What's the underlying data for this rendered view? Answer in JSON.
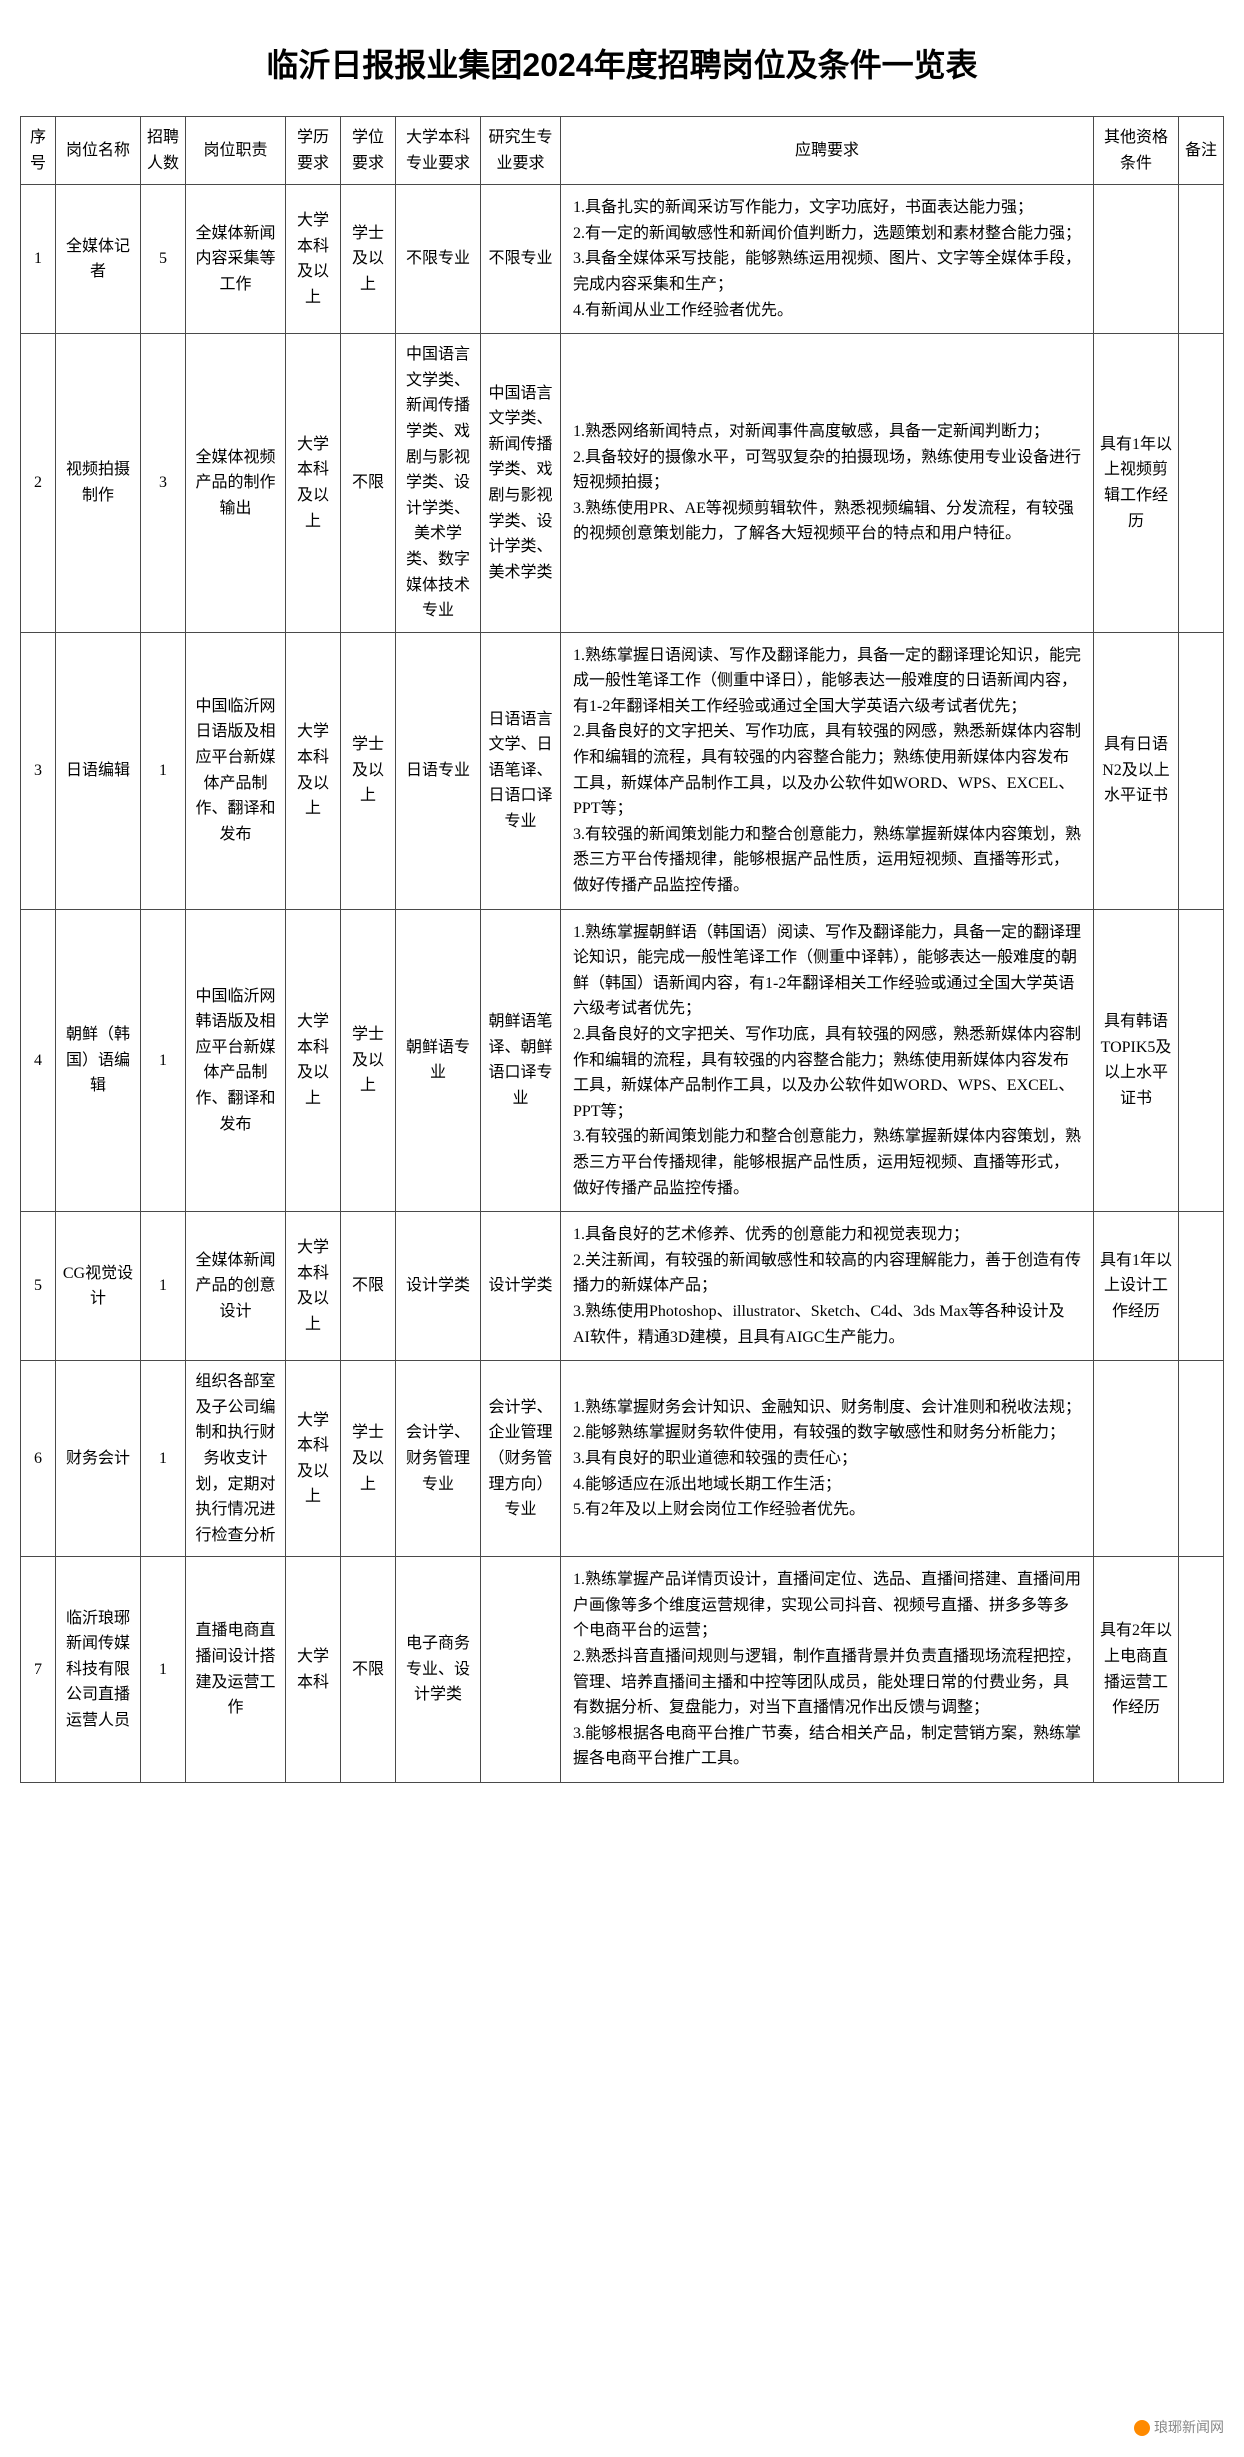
{
  "title": "临沂日报报业集团2024年度招聘岗位及条件一览表",
  "columns": {
    "no": "序号",
    "name": "岗位名称",
    "count": "招聘人数",
    "duty": "岗位职责",
    "edu": "学历要求",
    "degree": "学位要求",
    "bachelor_major": "大学本科专业要求",
    "grad_major": "研究生专业要求",
    "req": "应聘要求",
    "other": "其他资格条件",
    "remark": "备注"
  },
  "rows": [
    {
      "no": "1",
      "name": "全媒体记者",
      "count": "5",
      "duty": "全媒体新闻内容采集等工作",
      "edu": "大学本科及以上",
      "degree": "学士及以上",
      "bachelor_major": "不限专业",
      "grad_major": "不限专业",
      "req_lines": [
        "1.具备扎实的新闻采访写作能力，文字功底好，书面表达能力强；",
        "2.有一定的新闻敏感性和新闻价值判断力，选题策划和素材整合能力强；",
        "3.具备全媒体采写技能，能够熟练运用视频、图片、文字等全媒体手段，完成内容采集和生产；",
        "4.有新闻从业工作经验者优先。"
      ],
      "other": "",
      "remark": ""
    },
    {
      "no": "2",
      "name": "视频拍摄制作",
      "count": "3",
      "duty": "全媒体视频产品的制作输出",
      "edu": "大学本科及以上",
      "degree": "不限",
      "bachelor_major": "中国语言文学类、新闻传播学类、戏剧与影视学类、设计学类、美术学类、数字媒体技术专业",
      "grad_major": "中国语言文学类、新闻传播学类、戏剧与影视学类、设计学类、美术学类",
      "req_lines": [
        "1.熟悉网络新闻特点，对新闻事件高度敏感，具备一定新闻判断力；",
        "2.具备较好的摄像水平，可驾驭复杂的拍摄现场，熟练使用专业设备进行短视频拍摄；",
        "3.熟练使用PR、AE等视频剪辑软件，熟悉视频编辑、分发流程，有较强的视频创意策划能力，了解各大短视频平台的特点和用户特征。"
      ],
      "other": "具有1年以上视频剪辑工作经历",
      "remark": ""
    },
    {
      "no": "3",
      "name": "日语编辑",
      "count": "1",
      "duty": "中国临沂网日语版及相应平台新媒体产品制作、翻译和发布",
      "edu": "大学本科及以上",
      "degree": "学士及以上",
      "bachelor_major": "日语专业",
      "grad_major": "日语语言文学、日语笔译、日语口译专业",
      "req_lines": [
        "1.熟练掌握日语阅读、写作及翻译能力，具备一定的翻译理论知识，能完成一般性笔译工作（侧重中译日），能够表达一般难度的日语新闻内容，有1-2年翻译相关工作经验或通过全国大学英语六级考试者优先；",
        "2.具备良好的文字把关、写作功底，具有较强的网感，熟悉新媒体内容制作和编辑的流程，具有较强的内容整合能力；熟练使用新媒体内容发布工具，新媒体产品制作工具，以及办公软件如WORD、WPS、EXCEL、PPT等；",
        "3.有较强的新闻策划能力和整合创意能力，熟练掌握新媒体内容策划，熟悉三方平台传播规律，能够根据产品性质，运用短视频、直播等形式，做好传播产品监控传播。"
      ],
      "other": "具有日语N2及以上水平证书",
      "remark": ""
    },
    {
      "no": "4",
      "name": "朝鲜（韩国）语编辑",
      "count": "1",
      "duty": "中国临沂网韩语版及相应平台新媒体产品制作、翻译和发布",
      "edu": "大学本科及以上",
      "degree": "学士及以上",
      "bachelor_major": "朝鲜语专业",
      "grad_major": "朝鲜语笔译、朝鲜语口译专业",
      "req_lines": [
        "1.熟练掌握朝鲜语（韩国语）阅读、写作及翻译能力，具备一定的翻译理论知识，能完成一般性笔译工作（侧重中译韩），能够表达一般难度的朝鲜（韩国）语新闻内容，有1-2年翻译相关工作经验或通过全国大学英语六级考试者优先；",
        "2.具备良好的文字把关、写作功底，具有较强的网感，熟悉新媒体内容制作和编辑的流程，具有较强的内容整合能力；熟练使用新媒体内容发布工具，新媒体产品制作工具，以及办公软件如WORD、WPS、EXCEL、PPT等；",
        "3.有较强的新闻策划能力和整合创意能力，熟练掌握新媒体内容策划，熟悉三方平台传播规律，能够根据产品性质，运用短视频、直播等形式，做好传播产品监控传播。"
      ],
      "other": "具有韩语TOPIK5及以上水平证书",
      "remark": ""
    },
    {
      "no": "5",
      "name": "CG视觉设计",
      "count": "1",
      "duty": "全媒体新闻产品的创意设计",
      "edu": "大学本科及以上",
      "degree": "不限",
      "bachelor_major": "设计学类",
      "grad_major": "设计学类",
      "req_lines": [
        "1.具备良好的艺术修养、优秀的创意能力和视觉表现力；",
        "2.关注新闻，有较强的新闻敏感性和较高的内容理解能力，善于创造有传播力的新媒体产品；",
        "3.熟练使用Photoshop、illustrator、Sketch、C4d、3ds Max等各种设计及AI软件，精通3D建模，且具有AIGC生产能力。"
      ],
      "other": "具有1年以上设计工作经历",
      "remark": ""
    },
    {
      "no": "6",
      "name": "财务会计",
      "count": "1",
      "duty": "组织各部室及子公司编制和执行财务收支计划，定期对执行情况进行检查分析",
      "edu": "大学本科及以上",
      "degree": "学士及以上",
      "bachelor_major": "会计学、财务管理专业",
      "grad_major": "会计学、企业管理（财务管理方向）专业",
      "req_lines": [
        "1.熟练掌握财务会计知识、金融知识、财务制度、会计准则和税收法规；",
        "2.能够熟练掌握财务软件使用，有较强的数字敏感性和财务分析能力；",
        "3.具有良好的职业道德和较强的责任心；",
        "4.能够适应在派出地域长期工作生活；",
        "5.有2年及以上财会岗位工作经验者优先。"
      ],
      "other": "",
      "remark": ""
    },
    {
      "no": "7",
      "name": "临沂琅琊新闻传媒科技有限公司直播运营人员",
      "count": "1",
      "duty": "直播电商直播间设计搭建及运营工作",
      "edu": "大学本科",
      "degree": "不限",
      "bachelor_major": "电子商务专业、设计学类",
      "grad_major": "",
      "req_lines": [
        "1.熟练掌握产品详情页设计，直播间定位、选品、直播间搭建、直播间用户画像等多个维度运营规律，实现公司抖音、视频号直播、拼多多等多个电商平台的运营；",
        "2.熟悉抖音直播间规则与逻辑，制作直播背景并负责直播现场流程把控，管理、培养直播间主播和中控等团队成员，能处理日常的付费业务，具有数据分析、复盘能力，对当下直播情况作出反馈与调整；",
        "3.能够根据各电商平台推广节奏，结合相关产品，制定营销方案，熟练掌握各电商平台推广工具。"
      ],
      "other": "具有2年以上电商直播运营工作经历",
      "remark": ""
    }
  ],
  "watermark": "琅琊新闻网"
}
